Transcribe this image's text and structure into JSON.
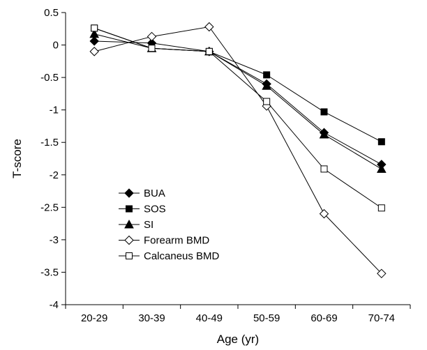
{
  "chart_data": {
    "type": "line",
    "title": "",
    "xlabel": "Age (yr)",
    "ylabel": "T-score",
    "categories": [
      "20-29",
      "30-39",
      "40-49",
      "50-59",
      "60-69",
      "70-74"
    ],
    "ylim": [
      -4,
      0.5
    ],
    "yticks": [
      "0.5",
      "0",
      "-0.5",
      "-1",
      "-1.5",
      "-2",
      "-2.5",
      "-3",
      "-3.5",
      "-4"
    ],
    "grid": false,
    "legend_position": "bottom-left",
    "series": [
      {
        "name": "BUA",
        "marker": "diamond-filled",
        "values": [
          0.06,
          0.03,
          -0.1,
          -0.6,
          -1.35,
          -1.84
        ]
      },
      {
        "name": "SOS",
        "marker": "square-filled",
        "values": [
          0.26,
          -0.05,
          -0.1,
          -0.46,
          -1.03,
          -1.49
        ]
      },
      {
        "name": "SI",
        "marker": "triangle-filled",
        "values": [
          0.17,
          -0.05,
          -0.1,
          -0.63,
          -1.38,
          -1.91
        ]
      },
      {
        "name": "Forearm BMD",
        "marker": "diamond-open",
        "values": [
          -0.1,
          0.13,
          0.28,
          -0.94,
          -2.6,
          -3.52
        ]
      },
      {
        "name": "Calcaneus BMD",
        "marker": "square-open",
        "values": [
          0.26,
          -0.05,
          -0.1,
          -0.87,
          -1.91,
          -2.51
        ]
      }
    ]
  }
}
